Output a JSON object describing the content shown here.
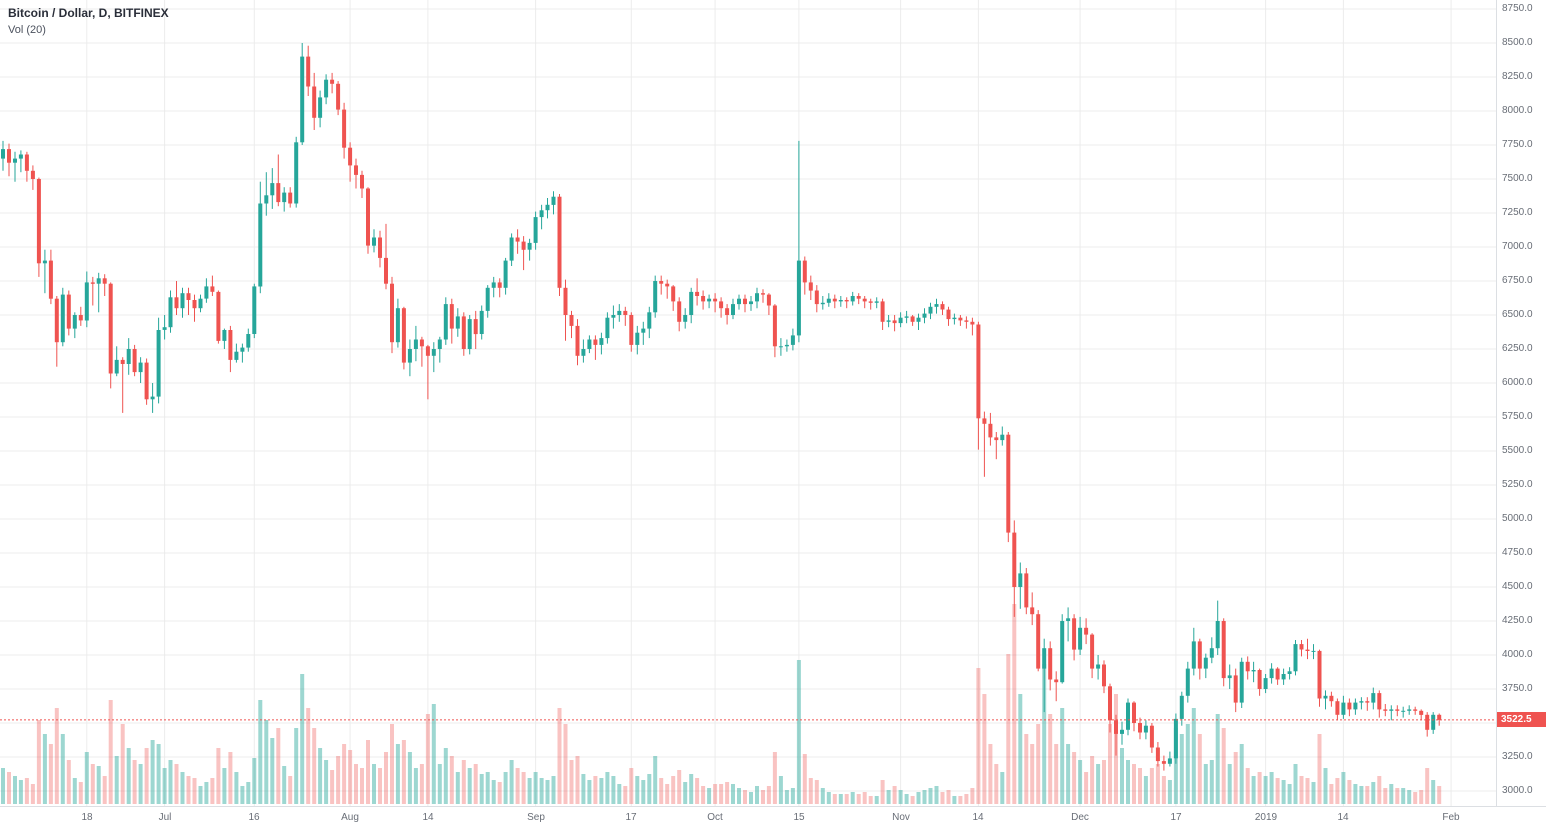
{
  "legend": {
    "symbol": "Bitcoin / Dollar, D, BITFINEX",
    "indicator": "Vol (20)"
  },
  "colors": {
    "up": "#26a69a",
    "down": "#ef5350",
    "vol_up": "rgba(38,166,154,0.45)",
    "vol_down": "rgba(239,83,80,0.35)",
    "grid": "#ececec",
    "axis_text": "#686d76",
    "last_price": "#ef5350",
    "background": "#ffffff"
  },
  "chart_data": {
    "type": "candlestick",
    "title": "Bitcoin / Dollar, D, BITFINEX",
    "symbol": "Bitcoin / Dollar",
    "interval": "D",
    "exchange": "BITFINEX",
    "indicator": "Vol (20)",
    "last_price": 3522.5,
    "slots": 250,
    "first_open": 7650,
    "format": "each candle = [high, low, close, volume_rel]; open = previous candle close; volume_rel is relative units (100 = tallest volume bar)",
    "price_axis": {
      "min": 3000,
      "max": 8750,
      "step": 250,
      "last_price_label": "3522.5",
      "labels": [
        "8750.0",
        "8500.0",
        "8250.0",
        "8000.0",
        "7750.0",
        "7500.0",
        "7250.0",
        "7000.0",
        "6750.0",
        "6500.0",
        "6250.0",
        "6000.0",
        "5750.0",
        "5500.0",
        "5250.0",
        "5000.0",
        "4750.0",
        "4500.0",
        "4250.0",
        "4000.0",
        "3750.0",
        "3250.0",
        "3000.0"
      ]
    },
    "time_axis": {
      "ticks": [
        {
          "label": "18",
          "slot": 14
        },
        {
          "label": "Jul",
          "slot": 27
        },
        {
          "label": "16",
          "slot": 42
        },
        {
          "label": "Aug",
          "slot": 58
        },
        {
          "label": "14",
          "slot": 71
        },
        {
          "label": "Sep",
          "slot": 89
        },
        {
          "label": "17",
          "slot": 105
        },
        {
          "label": "Oct",
          "slot": 119
        },
        {
          "label": "15",
          "slot": 133
        },
        {
          "label": "Nov",
          "slot": 150
        },
        {
          "label": "14",
          "slot": 163
        },
        {
          "label": "Dec",
          "slot": 180
        },
        {
          "label": "17",
          "slot": 196
        },
        {
          "label": "2019",
          "slot": 211
        },
        {
          "label": "14",
          "slot": 224
        },
        {
          "label": "Feb",
          "slot": 242
        }
      ]
    },
    "candles": [
      [
        7780,
        7560,
        7720,
        18
      ],
      [
        7760,
        7520,
        7620,
        16
      ],
      [
        7700,
        7480,
        7650,
        14
      ],
      [
        7710,
        7550,
        7680,
        12
      ],
      [
        7700,
        7480,
        7560,
        13
      ],
      [
        7600,
        7420,
        7500,
        10
      ],
      [
        7510,
        6780,
        6880,
        42
      ],
      [
        6980,
        6660,
        6900,
        35
      ],
      [
        6980,
        6580,
        6620,
        30
      ],
      [
        6640,
        6120,
        6300,
        48
      ],
      [
        6700,
        6270,
        6650,
        35
      ],
      [
        6680,
        6350,
        6400,
        22
      ],
      [
        6520,
        6330,
        6500,
        13
      ],
      [
        6560,
        6420,
        6460,
        11
      ],
      [
        6820,
        6410,
        6740,
        26
      ],
      [
        6780,
        6570,
        6730,
        20
      ],
      [
        6810,
        6520,
        6770,
        19
      ],
      [
        6800,
        6640,
        6730,
        14
      ],
      [
        6740,
        5960,
        6070,
        52
      ],
      [
        6270,
        6050,
        6170,
        24
      ],
      [
        6190,
        5780,
        6140,
        40
      ],
      [
        6330,
        6060,
        6250,
        28
      ],
      [
        6280,
        6050,
        6080,
        22
      ],
      [
        6190,
        6000,
        6150,
        20
      ],
      [
        6180,
        5840,
        5880,
        28
      ],
      [
        6000,
        5780,
        5900,
        32
      ],
      [
        6480,
        5850,
        6390,
        30
      ],
      [
        6500,
        6320,
        6410,
        18
      ],
      [
        6680,
        6370,
        6630,
        22
      ],
      [
        6750,
        6500,
        6550,
        20
      ],
      [
        6700,
        6480,
        6660,
        16
      ],
      [
        6700,
        6500,
        6610,
        14
      ],
      [
        6650,
        6450,
        6550,
        13
      ],
      [
        6650,
        6520,
        6620,
        9
      ],
      [
        6770,
        6590,
        6710,
        11
      ],
      [
        6790,
        6640,
        6670,
        13
      ],
      [
        6680,
        6290,
        6310,
        28
      ],
      [
        6400,
        6250,
        6390,
        18
      ],
      [
        6420,
        6080,
        6170,
        26
      ],
      [
        6290,
        6150,
        6230,
        16
      ],
      [
        6290,
        6150,
        6260,
        9
      ],
      [
        6400,
        6230,
        6360,
        11
      ],
      [
        6730,
        6330,
        6710,
        23
      ],
      [
        7480,
        6660,
        7320,
        52
      ],
      [
        7550,
        7230,
        7380,
        42
      ],
      [
        7580,
        7280,
        7470,
        33
      ],
      [
        7680,
        7300,
        7330,
        38
      ],
      [
        7440,
        7260,
        7400,
        19
      ],
      [
        7440,
        7290,
        7320,
        14
      ],
      [
        7810,
        7290,
        7770,
        38
      ],
      [
        8500,
        7750,
        8400,
        65
      ],
      [
        8480,
        8110,
        8180,
        48
      ],
      [
        8280,
        7860,
        7950,
        38
      ],
      [
        8150,
        7880,
        8100,
        28
      ],
      [
        8270,
        8050,
        8230,
        22
      ],
      [
        8280,
        8130,
        8200,
        17
      ],
      [
        8220,
        7970,
        8010,
        24
      ],
      [
        8060,
        7650,
        7730,
        30
      ],
      [
        7770,
        7480,
        7600,
        27
      ],
      [
        7650,
        7430,
        7530,
        20
      ],
      [
        7560,
        7360,
        7430,
        18
      ],
      [
        7440,
        6950,
        7010,
        32
      ],
      [
        7130,
        6960,
        7070,
        20
      ],
      [
        7120,
        6850,
        6920,
        18
      ],
      [
        7170,
        6690,
        6730,
        26
      ],
      [
        6780,
        6220,
        6300,
        40
      ],
      [
        6620,
        6260,
        6550,
        30
      ],
      [
        6560,
        6100,
        6150,
        32
      ],
      [
        6320,
        6050,
        6250,
        26
      ],
      [
        6420,
        6160,
        6320,
        18
      ],
      [
        6340,
        6120,
        6270,
        20
      ],
      [
        6280,
        5880,
        6200,
        45
      ],
      [
        6300,
        6080,
        6250,
        50
      ],
      [
        6340,
        6150,
        6320,
        20
      ],
      [
        6630,
        6280,
        6580,
        28
      ],
      [
        6620,
        6290,
        6400,
        24
      ],
      [
        6550,
        6340,
        6490,
        16
      ],
      [
        6520,
        6200,
        6250,
        22
      ],
      [
        6500,
        6210,
        6470,
        18
      ],
      [
        6530,
        6250,
        6360,
        20
      ],
      [
        6570,
        6320,
        6530,
        15
      ],
      [
        6720,
        6480,
        6700,
        16
      ],
      [
        6780,
        6630,
        6740,
        12
      ],
      [
        6770,
        6630,
        6700,
        11
      ],
      [
        6920,
        6650,
        6900,
        16
      ],
      [
        7100,
        6860,
        7070,
        22
      ],
      [
        7130,
        6950,
        7040,
        18
      ],
      [
        7080,
        6830,
        6980,
        16
      ],
      [
        7060,
        6900,
        7030,
        13
      ],
      [
        7260,
        6980,
        7220,
        16
      ],
      [
        7310,
        7130,
        7270,
        13
      ],
      [
        7360,
        7210,
        7310,
        12
      ],
      [
        7410,
        7240,
        7370,
        14
      ],
      [
        7390,
        6640,
        6700,
        48
      ],
      [
        6760,
        6310,
        6500,
        40
      ],
      [
        6530,
        6330,
        6420,
        22
      ],
      [
        6470,
        6130,
        6200,
        24
      ],
      [
        6320,
        6150,
        6250,
        15
      ],
      [
        6350,
        6220,
        6320,
        12
      ],
      [
        6350,
        6170,
        6280,
        14
      ],
      [
        6370,
        6210,
        6330,
        13
      ],
      [
        6520,
        6290,
        6480,
        16
      ],
      [
        6570,
        6400,
        6500,
        14
      ],
      [
        6580,
        6450,
        6530,
        10
      ],
      [
        6560,
        6420,
        6500,
        9
      ],
      [
        6520,
        6230,
        6280,
        18
      ],
      [
        6420,
        6210,
        6370,
        14
      ],
      [
        6450,
        6280,
        6400,
        12
      ],
      [
        6560,
        6330,
        6520,
        15
      ],
      [
        6790,
        6480,
        6750,
        24
      ],
      [
        6790,
        6650,
        6730,
        13
      ],
      [
        6760,
        6620,
        6710,
        10
      ],
      [
        6720,
        6530,
        6600,
        14
      ],
      [
        6630,
        6380,
        6450,
        17
      ],
      [
        6550,
        6400,
        6500,
        11
      ],
      [
        6700,
        6440,
        6670,
        15
      ],
      [
        6770,
        6570,
        6640,
        13
      ],
      [
        6680,
        6540,
        6600,
        9
      ],
      [
        6650,
        6550,
        6620,
        8
      ],
      [
        6660,
        6520,
        6600,
        10
      ],
      [
        6630,
        6480,
        6550,
        10
      ],
      [
        6580,
        6430,
        6500,
        11
      ],
      [
        6620,
        6470,
        6580,
        10
      ],
      [
        6650,
        6540,
        6620,
        8
      ],
      [
        6650,
        6520,
        6580,
        7
      ],
      [
        6640,
        6530,
        6600,
        6
      ],
      [
        6700,
        6550,
        6660,
        9
      ],
      [
        6690,
        6590,
        6650,
        7
      ],
      [
        6660,
        6500,
        6570,
        9
      ],
      [
        6580,
        6190,
        6270,
        26
      ],
      [
        6330,
        6200,
        6270,
        14
      ],
      [
        6320,
        6230,
        6280,
        7
      ],
      [
        6400,
        6240,
        6350,
        8
      ],
      [
        7780,
        6300,
        6900,
        72
      ],
      [
        6930,
        6650,
        6740,
        25
      ],
      [
        6790,
        6610,
        6680,
        13
      ],
      [
        6720,
        6520,
        6580,
        12
      ],
      [
        6640,
        6540,
        6590,
        8
      ],
      [
        6660,
        6560,
        6620,
        6
      ],
      [
        6650,
        6550,
        6600,
        5
      ],
      [
        6640,
        6560,
        6610,
        5
      ],
      [
        6630,
        6550,
        6600,
        5
      ],
      [
        6670,
        6570,
        6640,
        6
      ],
      [
        6660,
        6580,
        6620,
        5
      ],
      [
        6640,
        6550,
        6600,
        6
      ],
      [
        6620,
        6540,
        6590,
        4
      ],
      [
        6630,
        6550,
        6600,
        4
      ],
      [
        6620,
        6390,
        6450,
        12
      ],
      [
        6500,
        6410,
        6460,
        7
      ],
      [
        6500,
        6380,
        6440,
        9
      ],
      [
        6520,
        6410,
        6480,
        7
      ],
      [
        6530,
        6440,
        6490,
        5
      ],
      [
        6500,
        6420,
        6450,
        4
      ],
      [
        6510,
        6390,
        6480,
        6
      ],
      [
        6550,
        6440,
        6510,
        7
      ],
      [
        6590,
        6470,
        6560,
        8
      ],
      [
        6620,
        6510,
        6580,
        9
      ],
      [
        6600,
        6500,
        6540,
        6
      ],
      [
        6560,
        6420,
        6470,
        7
      ],
      [
        6510,
        6430,
        6480,
        4
      ],
      [
        6500,
        6420,
        6460,
        4
      ],
      [
        6490,
        6400,
        6450,
        5
      ],
      [
        6480,
        6350,
        6430,
        8
      ],
      [
        6450,
        5510,
        5740,
        68
      ],
      [
        5790,
        5310,
        5700,
        55
      ],
      [
        5780,
        5540,
        5600,
        30
      ],
      [
        5640,
        5440,
        5580,
        20
      ],
      [
        5680,
        5540,
        5620,
        16
      ],
      [
        5640,
        4830,
        4900,
        75
      ],
      [
        4990,
        4280,
        4500,
        100
      ],
      [
        4680,
        4340,
        4600,
        55
      ],
      [
        4640,
        4300,
        4350,
        35
      ],
      [
        4460,
        4220,
        4300,
        30
      ],
      [
        4330,
        3880,
        3900,
        40
      ],
      [
        4120,
        3580,
        4050,
        70
      ],
      [
        4100,
        3740,
        3820,
        45
      ],
      [
        3880,
        3660,
        3800,
        30
      ],
      [
        4300,
        3790,
        4250,
        48
      ],
      [
        4350,
        4100,
        4270,
        30
      ],
      [
        4300,
        3960,
        4040,
        26
      ],
      [
        4280,
        4000,
        4200,
        22
      ],
      [
        4270,
        4080,
        4150,
        16
      ],
      [
        4160,
        3830,
        3900,
        24
      ],
      [
        4000,
        3820,
        3930,
        20
      ],
      [
        3960,
        3720,
        3770,
        22
      ],
      [
        3790,
        3430,
        3520,
        40
      ],
      [
        3560,
        3260,
        3420,
        55
      ],
      [
        3510,
        3340,
        3450,
        28
      ],
      [
        3680,
        3410,
        3650,
        22
      ],
      [
        3660,
        3440,
        3500,
        20
      ],
      [
        3540,
        3380,
        3430,
        18
      ],
      [
        3520,
        3380,
        3480,
        14
      ],
      [
        3500,
        3280,
        3320,
        18
      ],
      [
        3360,
        3180,
        3220,
        20
      ],
      [
        3260,
        3150,
        3200,
        14
      ],
      [
        3290,
        3180,
        3240,
        12
      ],
      [
        3570,
        3200,
        3530,
        38
      ],
      [
        3730,
        3480,
        3700,
        35
      ],
      [
        3950,
        3650,
        3900,
        40
      ],
      [
        4200,
        3850,
        4100,
        48
      ],
      [
        4120,
        3820,
        3900,
        35
      ],
      [
        4010,
        3830,
        3980,
        20
      ],
      [
        4130,
        3940,
        4050,
        22
      ],
      [
        4400,
        4000,
        4250,
        45
      ],
      [
        4270,
        3770,
        3830,
        38
      ],
      [
        3930,
        3750,
        3850,
        20
      ],
      [
        3900,
        3580,
        3650,
        26
      ],
      [
        3980,
        3610,
        3950,
        30
      ],
      [
        3990,
        3820,
        3880,
        18
      ],
      [
        3950,
        3800,
        3890,
        14
      ],
      [
        3900,
        3700,
        3750,
        16
      ],
      [
        3860,
        3720,
        3830,
        14
      ],
      [
        3940,
        3790,
        3900,
        16
      ],
      [
        3910,
        3780,
        3820,
        13
      ],
      [
        3900,
        3780,
        3860,
        12
      ],
      [
        3910,
        3820,
        3880,
        10
      ],
      [
        4110,
        3850,
        4080,
        20
      ],
      [
        4110,
        3990,
        4040,
        14
      ],
      [
        4120,
        3970,
        4030,
        13
      ],
      [
        4080,
        3970,
        4030,
        11
      ],
      [
        4040,
        3620,
        3680,
        35
      ],
      [
        3740,
        3600,
        3700,
        18
      ],
      [
        3730,
        3620,
        3660,
        10
      ],
      [
        3680,
        3520,
        3560,
        13
      ],
      [
        3700,
        3530,
        3650,
        16
      ],
      [
        3680,
        3550,
        3600,
        12
      ],
      [
        3680,
        3560,
        3650,
        10
      ],
      [
        3690,
        3600,
        3660,
        9
      ],
      [
        3690,
        3590,
        3650,
        9
      ],
      [
        3760,
        3600,
        3720,
        11
      ],
      [
        3740,
        3540,
        3600,
        14
      ],
      [
        3640,
        3550,
        3590,
        8
      ],
      [
        3630,
        3520,
        3600,
        10
      ],
      [
        3630,
        3550,
        3590,
        8
      ],
      [
        3620,
        3540,
        3590,
        8
      ],
      [
        3630,
        3560,
        3600,
        7
      ],
      [
        3620,
        3560,
        3590,
        6
      ],
      [
        3600,
        3520,
        3560,
        7
      ],
      [
        3580,
        3400,
        3450,
        18
      ],
      [
        3580,
        3420,
        3560,
        12
      ],
      [
        3570,
        3480,
        3522.5,
        9
      ]
    ]
  }
}
